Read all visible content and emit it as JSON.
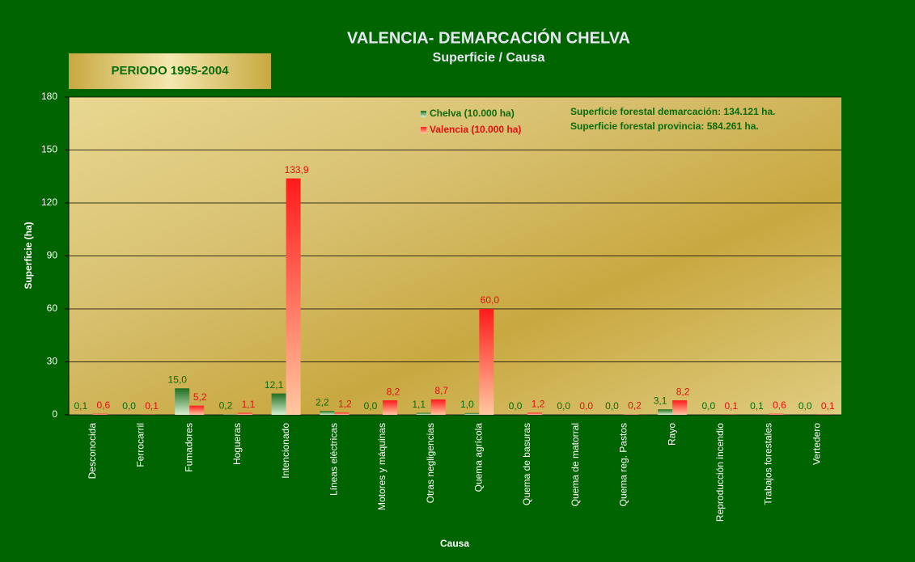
{
  "chart_data": {
    "type": "bar",
    "title": "VALENCIA- DEMARCACIÓN  CHELVA",
    "subtitle": "Superficie / Causa",
    "period": "PERIODO 1995-2004",
    "annotations": [
      "Superficie forestal  demarcación:  134.121  ha.",
      "Superficie forestal  provincia:  584.261  ha."
    ],
    "xlabel": "Causa",
    "ylabel": "Superficie (ha)",
    "categories": [
      "Desconocida",
      "Ferrocarril",
      "Fumadores",
      "Hogueras",
      "Intencionado",
      "Líneas eléctricas",
      "Motores y máquinas",
      "Otras negligencias",
      "Quema agrícola",
      "Quema de basuras",
      "Quema de matorral",
      "Quema reg. Pastos",
      "Rayo",
      "Reproducción incendio",
      "Trabajos forestales",
      "Vertedero"
    ],
    "series": [
      {
        "name": "Chelva (10.000 ha)",
        "color": "#1f6e1f",
        "values": [
          0.1,
          0.0,
          15.0,
          0.2,
          12.1,
          2.2,
          0.0,
          1.1,
          1.0,
          0.0,
          0.0,
          0.0,
          3.1,
          0.0,
          0.1,
          0.0
        ],
        "value_labels": [
          "0,1",
          "0,0",
          "15,0",
          "0,2",
          "12,1",
          "2,2",
          "0,0",
          "1,1",
          "1,0",
          "0,0",
          "0,0",
          "0,0",
          "3,1",
          "0,0",
          "0,1",
          "0,0"
        ]
      },
      {
        "name": "Valencia (10.000  ha)",
        "color": "#ff1a1a",
        "values": [
          0.6,
          0.1,
          5.2,
          1.1,
          133.9,
          1.2,
          8.2,
          8.7,
          60.0,
          1.2,
          0.0,
          0.2,
          8.2,
          0.1,
          0.6,
          0.1
        ],
        "value_labels": [
          "0,6",
          "0,1",
          "5,2",
          "1,1",
          "133,9",
          "1,2",
          "8,2",
          "8,7",
          "60,0",
          "1,2",
          "0,0",
          "0,2",
          "8,2",
          "0,1",
          "0,6",
          "0,1"
        ]
      }
    ],
    "ylim": [
      0,
      180
    ],
    "yticks": [
      0,
      30,
      60,
      90,
      120,
      150,
      180
    ],
    "grid": true
  }
}
